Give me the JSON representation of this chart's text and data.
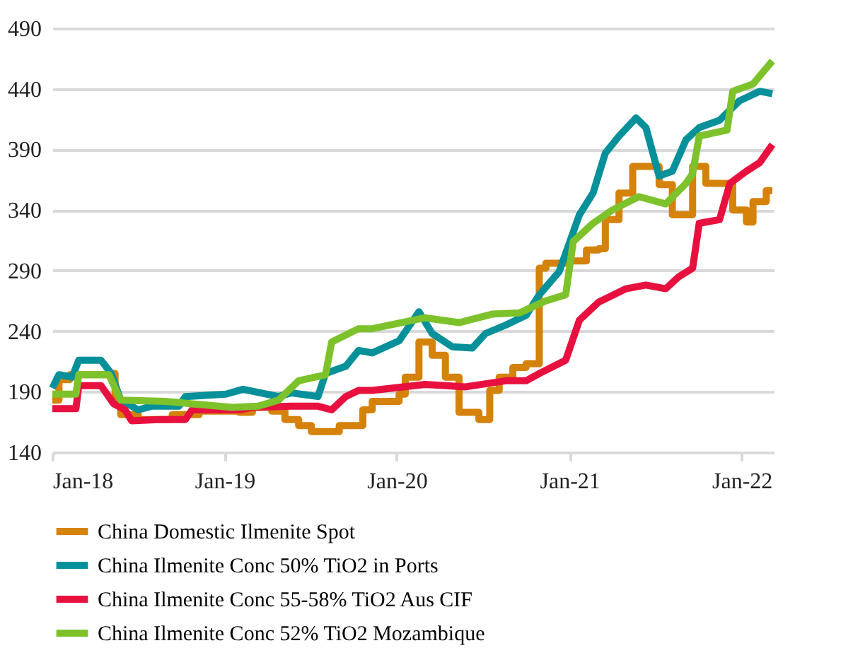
{
  "chart_data": {
    "type": "line",
    "xlim": [
      "2018-01-01",
      "2022-03-10"
    ],
    "xticks": [
      {
        "value": "2018-01-01",
        "label": "Jan-18"
      },
      {
        "value": "2019-01-01",
        "label": "Jan-19"
      },
      {
        "value": "2020-01-01",
        "label": "Jan-20"
      },
      {
        "value": "2021-01-01",
        "label": "Jan-21"
      },
      {
        "value": "2022-01-01",
        "label": "Jan-22"
      }
    ],
    "ylim": [
      140,
      490
    ],
    "yticks": [
      140,
      190,
      240,
      290,
      340,
      390,
      440,
      490
    ],
    "grid": "y",
    "legend": "bottom",
    "line_style": "solid",
    "marker": "none",
    "series": [
      {
        "name": "China Domestic Ilmenite Spot",
        "color": "#d4820a",
        "type": "step",
        "x": [
          "2018-01-01",
          "2018-01-15",
          "2018-02-07",
          "2018-04-14",
          "2018-05-01",
          "2018-05-14",
          "2018-05-26",
          "2018-07-02",
          "2018-08-28",
          "2018-09-12",
          "2018-10-24",
          "2018-11-08",
          "2019-02-01",
          "2019-03-01",
          "2019-04-11",
          "2019-05-09",
          "2019-06-07",
          "2019-07-04",
          "2019-08-03",
          "2019-09-01",
          "2019-10-12",
          "2019-10-21",
          "2019-11-10",
          "2020-01-06",
          "2020-01-19",
          "2020-02-17",
          "2020-03-16",
          "2020-04-13",
          "2020-05-12",
          "2020-06-23",
          "2020-07-16",
          "2020-08-05",
          "2020-09-03",
          "2020-10-01",
          "2020-10-29",
          "2020-11-12",
          "2020-12-24",
          "2021-01-22",
          "2021-02-06",
          "2021-03-04",
          "2021-03-18",
          "2021-04-02",
          "2021-04-16",
          "2021-05-15",
          "2021-06-26",
          "2021-07-10",
          "2021-08-07",
          "2021-09-05",
          "2021-09-19",
          "2021-10-17",
          "2021-11-15",
          "2021-12-13",
          "2022-01-11",
          "2022-01-25",
          "2022-02-22",
          "2022-03-07"
        ],
        "values": [
          183,
          200,
          204,
          204,
          205,
          180,
          171,
          167,
          167,
          171,
          171,
          174,
          173,
          177,
          174,
          167,
          162,
          157,
          157,
          162,
          162,
          175,
          182,
          188,
          202,
          231,
          220,
          202,
          173,
          167,
          191,
          202,
          210,
          213,
          292,
          296,
          298,
          298,
          307,
          308,
          332,
          332,
          354,
          376,
          376,
          361,
          336,
          336,
          376,
          362,
          362,
          340,
          330,
          347,
          356,
          356
        ]
      },
      {
        "name": "China Ilmenite Conc 50% TiO2 in Ports",
        "color": "#05909a",
        "type": "line",
        "x": [
          "2018-01-01",
          "2018-01-15",
          "2018-02-12",
          "2018-02-26",
          "2018-04-14",
          "2018-05-06",
          "2018-05-26",
          "2018-07-02",
          "2018-07-30",
          "2018-09-26",
          "2018-10-10",
          "2019-01-04",
          "2019-02-09",
          "2019-04-25",
          "2019-05-23",
          "2019-07-18",
          "2019-08-03",
          "2019-09-15",
          "2019-10-12",
          "2019-11-10",
          "2020-01-06",
          "2020-02-17",
          "2020-03-16",
          "2020-04-28",
          "2020-06-09",
          "2020-07-07",
          "2020-08-19",
          "2020-10-01",
          "2020-10-29",
          "2020-12-10",
          "2021-01-22",
          "2021-02-20",
          "2021-03-18",
          "2021-04-16",
          "2021-05-22",
          "2021-06-12",
          "2021-07-10",
          "2021-08-07",
          "2021-09-05",
          "2021-10-03",
          "2021-11-15",
          "2021-12-27",
          "2022-02-08",
          "2022-03-07"
        ],
        "values": [
          193,
          204,
          202,
          216,
          216,
          205,
          183,
          175,
          178,
          178,
          186,
          188,
          192,
          186,
          189,
          186,
          205,
          211,
          224,
          222,
          232,
          256,
          238,
          227,
          226,
          238,
          245,
          253,
          270,
          289,
          336,
          354,
          387,
          401,
          416,
          408,
          368,
          372,
          398,
          408,
          414,
          430,
          438,
          436
        ]
      },
      {
        "name": "China Ilmenite Conc 55-58% TiO2 Aus CIF",
        "color": "#e8103f",
        "type": "line",
        "x": [
          "2018-01-01",
          "2018-02-20",
          "2018-02-26",
          "2018-04-14",
          "2018-05-11",
          "2018-06-04",
          "2018-06-18",
          "2018-08-14",
          "2018-10-10",
          "2018-10-24",
          "2019-02-01",
          "2019-03-01",
          "2019-05-23",
          "2019-07-18",
          "2019-08-16",
          "2019-09-15",
          "2019-10-12",
          "2019-11-10",
          "2020-03-01",
          "2020-05-26",
          "2020-08-19",
          "2020-10-01",
          "2020-10-29",
          "2020-12-24",
          "2021-01-22",
          "2021-03-04",
          "2021-05-01",
          "2021-06-12",
          "2021-07-24",
          "2021-08-21",
          "2021-09-19",
          "2021-10-03",
          "2021-11-15",
          "2021-12-07",
          "2022-01-11",
          "2022-02-08",
          "2022-03-07"
        ],
        "values": [
          176,
          176,
          195,
          195,
          180,
          175,
          166,
          167,
          167,
          175,
          175,
          177,
          178,
          178,
          175,
          186,
          191,
          191,
          196,
          194,
          199,
          199,
          205,
          216,
          249,
          264,
          275,
          278,
          275,
          285,
          292,
          329,
          332,
          362,
          372,
          379,
          394
        ]
      },
      {
        "name": "China Ilmenite Conc 52% TiO2 Mozambique",
        "color": "#7dc22b",
        "type": "line",
        "x": [
          "2018-01-01",
          "2018-02-20",
          "2018-02-26",
          "2018-05-01",
          "2018-05-26",
          "2018-08-28",
          "2018-10-24",
          "2019-01-18",
          "2019-03-13",
          "2019-04-25",
          "2019-06-07",
          "2019-08-03",
          "2019-08-16",
          "2019-10-12",
          "2019-11-10",
          "2020-03-01",
          "2020-05-12",
          "2020-07-21",
          "2020-09-17",
          "2020-11-12",
          "2020-12-24",
          "2021-01-09",
          "2021-02-20",
          "2021-04-02",
          "2021-05-28",
          "2021-07-24",
          "2021-09-05",
          "2021-09-19",
          "2021-10-03",
          "2021-12-01",
          "2021-12-13",
          "2022-01-25",
          "2022-03-07"
        ],
        "values": [
          188,
          188,
          204,
          204,
          183,
          182,
          180,
          177,
          178,
          183,
          199,
          204,
          231,
          242,
          242,
          251,
          247,
          254,
          255,
          265,
          270,
          314,
          329,
          340,
          351,
          345,
          362,
          370,
          401,
          406,
          438,
          444,
          463
        ]
      }
    ]
  }
}
